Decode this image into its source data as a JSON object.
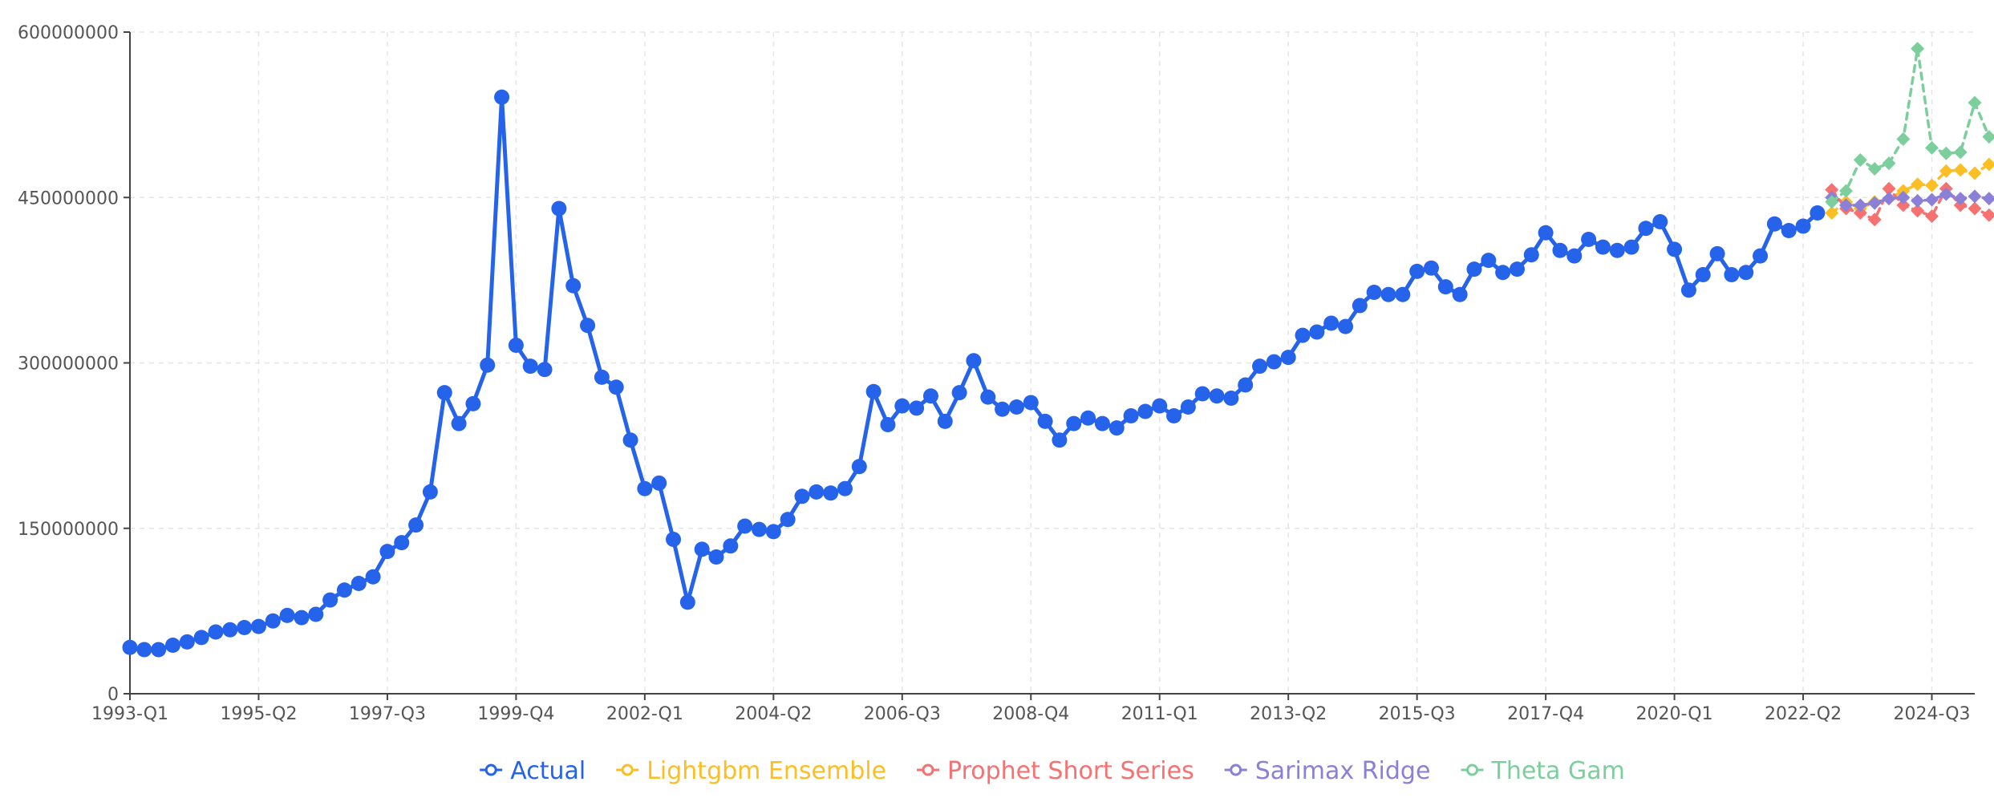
{
  "chart_data": {
    "type": "line",
    "title": "",
    "xlabel": "",
    "ylabel": "",
    "ylim": [
      0,
      600000000
    ],
    "y_ticks": [
      0,
      150000000,
      300000000,
      450000000,
      600000000
    ],
    "y_tick_labels": [
      "0",
      "150000000",
      "300000000",
      "450000000",
      "600000000"
    ],
    "x_tick_labels": [
      "1993-Q1",
      "1995-Q2",
      "1997-Q3",
      "1999-Q4",
      "2002-Q1",
      "2004-Q2",
      "2006-Q3",
      "2008-Q4",
      "2011-Q1",
      "2013-Q2",
      "2015-Q3",
      "2017-Q4",
      "2020-Q1",
      "2022-Q2",
      "2024-Q3"
    ],
    "x_start": "1993-Q1",
    "x_end": "2025-Q2",
    "grid": true,
    "legend_position": "bottom-center",
    "series": [
      {
        "name": "Actual",
        "color": "#2563eb",
        "style": "solid",
        "start": "1993-Q1",
        "values": [
          42000000,
          40000000,
          40000000,
          44000000,
          47000000,
          51000000,
          56000000,
          58000000,
          60000000,
          61000000,
          66000000,
          71000000,
          69000000,
          72000000,
          85000000,
          94000000,
          100000000,
          106000000,
          129000000,
          137000000,
          153000000,
          183000000,
          273000000,
          245000000,
          263000000,
          298000000,
          541000000,
          316000000,
          297000000,
          294000000,
          440000000,
          370000000,
          334000000,
          287000000,
          278000000,
          230000000,
          186000000,
          191000000,
          140000000,
          83000000,
          131000000,
          124000000,
          134000000,
          152000000,
          149000000,
          147000000,
          158000000,
          179000000,
          183000000,
          182000000,
          186000000,
          206000000,
          274000000,
          244000000,
          261000000,
          259000000,
          270000000,
          247000000,
          273000000,
          302000000,
          269000000,
          258000000,
          260000000,
          264000000,
          247000000,
          230000000,
          245000000,
          250000000,
          245000000,
          241000000,
          252000000,
          256000000,
          261000000,
          252000000,
          260000000,
          272000000,
          270000000,
          268000000,
          280000000,
          297000000,
          301000000,
          305000000,
          325000000,
          328000000,
          336000000,
          333000000,
          352000000,
          364000000,
          362000000,
          362000000,
          383000000,
          386000000,
          369000000,
          362000000,
          385000000,
          393000000,
          382000000,
          385000000,
          398000000,
          418000000,
          402000000,
          397000000,
          412000000,
          405000000,
          402000000,
          405000000,
          422000000,
          428000000,
          403000000,
          366000000,
          380000000,
          399000000,
          380000000,
          382000000,
          397000000,
          426000000,
          420000000,
          424000000,
          436000000
        ]
      },
      {
        "name": "Lightgbm Ensemble",
        "color": "#fbbf24",
        "style": "dashed",
        "start": "2022-Q4",
        "values": [
          436000000,
          446000000,
          440000000,
          446000000,
          449000000,
          456000000,
          462000000,
          461000000,
          474000000,
          475000000,
          472000000,
          480000000
        ]
      },
      {
        "name": "Prophet Short Series",
        "color": "#f87171",
        "style": "dashed",
        "start": "2022-Q4",
        "values": [
          457000000,
          440000000,
          436000000,
          430000000,
          458000000,
          443000000,
          438000000,
          433000000,
          458000000,
          443000000,
          440000000,
          434000000
        ]
      },
      {
        "name": "Sarimax Ridge",
        "color": "#8b80d8",
        "style": "dashed",
        "start": "2022-Q4",
        "values": [
          450000000,
          443000000,
          443000000,
          445000000,
          449000000,
          450000000,
          447000000,
          448000000,
          453000000,
          449000000,
          451000000,
          449000000
        ]
      },
      {
        "name": "Theta Gam",
        "color": "#7ccf9c",
        "style": "dashed",
        "start": "2022-Q4",
        "values": [
          446000000,
          456000000,
          484000000,
          476000000,
          481000000,
          503000000,
          585000000,
          495000000,
          490000000,
          491000000,
          536000000,
          505000000
        ]
      }
    ]
  }
}
